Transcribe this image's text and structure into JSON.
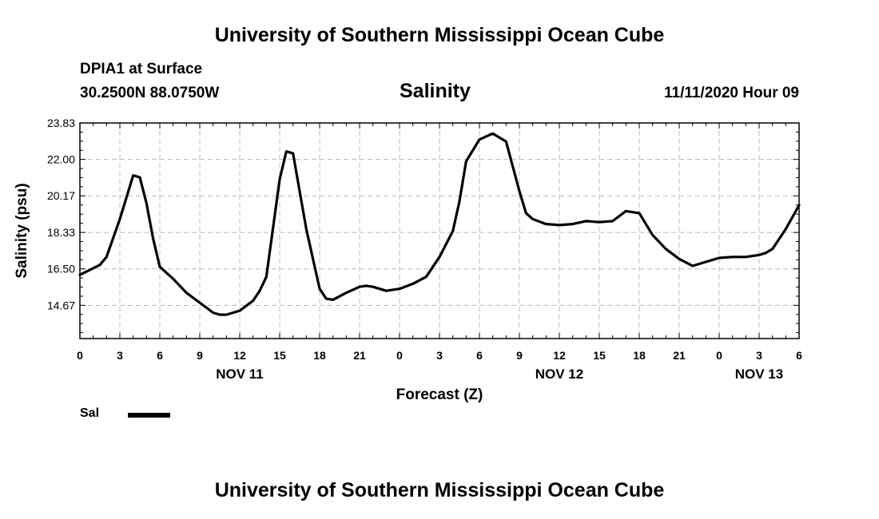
{
  "header": {
    "title": "University of Southern Mississippi Ocean Cube",
    "station": "DPIA1 at Surface",
    "coords": "30.2500N 88.0750W",
    "variable": "Salinity",
    "datetime": "11/11/2020 Hour 09"
  },
  "footer": {
    "title": "University of Southern Mississippi Ocean Cube"
  },
  "legend": {
    "label": "Sal",
    "color": "#000000"
  },
  "chart_data": {
    "type": "line",
    "xlabel": "Forecast (Z)",
    "ylabel": "Salinity (psu)",
    "ylim": [
      13.0,
      23.83
    ],
    "xlim": [
      0,
      54
    ],
    "yticks": [
      14.67,
      16.5,
      18.33,
      20.17,
      22.0,
      23.83
    ],
    "ytick_labels": [
      "14.67",
      "16.50",
      "18.33",
      "20.17",
      "22.00",
      "23.83"
    ],
    "xticks": [
      0,
      3,
      6,
      9,
      12,
      15,
      18,
      21,
      24,
      27,
      30,
      33,
      36,
      39,
      42,
      45,
      48,
      51,
      54
    ],
    "xtick_labels": [
      "0",
      "3",
      "6",
      "9",
      "12",
      "15",
      "18",
      "21",
      "0",
      "3",
      "6",
      "9",
      "12",
      "15",
      "18",
      "21",
      "0",
      "3",
      "6"
    ],
    "date_labels": [
      {
        "label": "NOV 11",
        "at": 12
      },
      {
        "label": "NOV 12",
        "at": 36
      },
      {
        "label": "NOV 13",
        "at": 51
      }
    ],
    "grid": true,
    "series": [
      {
        "name": "Sal",
        "color": "#000000",
        "x": [
          0,
          1.5,
          2,
          3,
          4,
          4.5,
          5,
          5.5,
          6,
          7,
          8,
          9,
          10,
          10.5,
          11,
          12,
          13,
          13.5,
          14,
          15,
          15.5,
          16,
          17,
          18,
          18.5,
          19,
          20,
          21,
          21.5,
          22,
          23,
          24,
          25,
          26,
          26.5,
          27,
          28,
          28.5,
          29,
          30,
          31,
          32,
          33,
          33.5,
          34,
          35,
          36,
          37,
          38,
          39,
          40,
          41,
          42,
          43,
          44,
          45,
          46,
          47,
          48,
          49,
          50,
          51,
          51.5,
          52,
          53,
          54
        ],
        "y": [
          16.2,
          16.7,
          17.1,
          19.0,
          21.2,
          21.1,
          19.8,
          18.0,
          16.6,
          16.0,
          15.3,
          14.8,
          14.3,
          14.2,
          14.2,
          14.4,
          14.9,
          15.4,
          16.1,
          21.0,
          22.4,
          22.3,
          18.5,
          15.5,
          15.0,
          14.95,
          15.3,
          15.6,
          15.65,
          15.6,
          15.4,
          15.5,
          15.75,
          16.1,
          16.6,
          17.1,
          18.4,
          19.9,
          21.9,
          23.0,
          23.3,
          22.9,
          20.4,
          19.3,
          19.0,
          18.75,
          18.7,
          18.75,
          18.9,
          18.85,
          18.9,
          19.4,
          19.3,
          18.2,
          17.5,
          17.0,
          16.65,
          16.85,
          17.05,
          17.1,
          17.1,
          17.2,
          17.3,
          17.5,
          18.5,
          19.7
        ]
      }
    ]
  }
}
